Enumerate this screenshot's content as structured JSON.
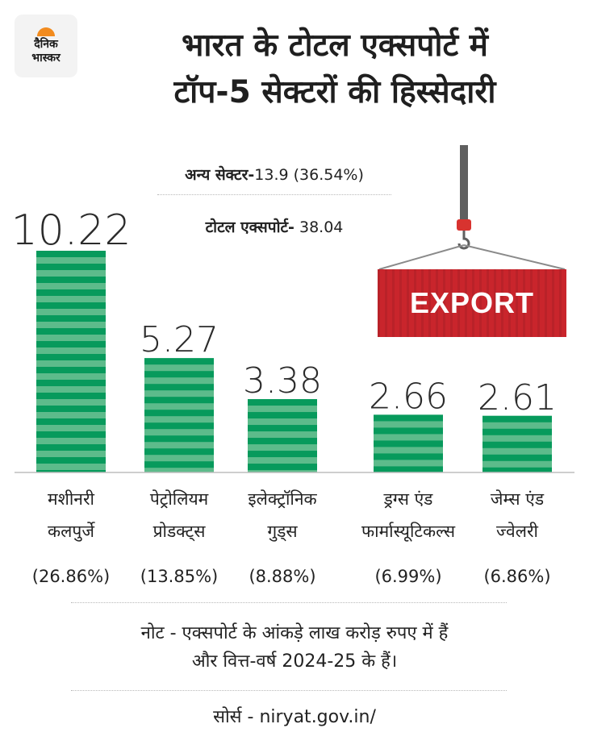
{
  "logo": {
    "line1": "दैनिक",
    "line2": "भास्कर"
  },
  "title": {
    "line1": "भारत के टोटल एक्सपोर्ट में",
    "line2": "टॉप-5 सेक्टरों की हिस्सेदारी"
  },
  "stats": {
    "other_label": "अन्य सेक्टर-",
    "other_value": "13.9 (36.54%)",
    "total_label": "टोटल एक्सपोर्ट-",
    "total_value": " 38.04"
  },
  "container": {
    "label": "EXPORT"
  },
  "colors": {
    "bar_dark": "#079a5c",
    "bar_light": "#5dbb8b",
    "container": "#c9252c",
    "crane": "#5f5f5f",
    "hook": "#d8332f"
  },
  "chart_data": {
    "type": "bar",
    "categories": [
      [
        "मशीनरी",
        "कलपुर्जे"
      ],
      [
        "पेट्रोलियम",
        "प्रोडक्ट्स"
      ],
      [
        "इलेक्ट्रॉनिक",
        "गुड्स"
      ],
      [
        "ड्रग्स एंड",
        "फार्मास्यूटिकल्स"
      ],
      [
        "जेम्स एंड",
        "ज्वेलरी"
      ]
    ],
    "values": [
      10.22,
      5.27,
      3.38,
      2.66,
      2.61
    ],
    "value_labels": [
      "10.22",
      "5.27",
      "3.38",
      "2.66",
      "2.61"
    ],
    "shares": [
      "(26.86%)",
      "(13.85%)",
      "(8.88%)",
      "(6.99%)",
      "(6.86%)"
    ],
    "ylim": [
      0,
      10.22
    ]
  },
  "note": {
    "line1": "नोट - एक्सपोर्ट के आंकड़े लाख करोड़ रुपए में हैं",
    "line2": "और वित्त-वर्ष 2024-25 के हैं।"
  },
  "source": "सोर्स - niryat.gov.in/"
}
